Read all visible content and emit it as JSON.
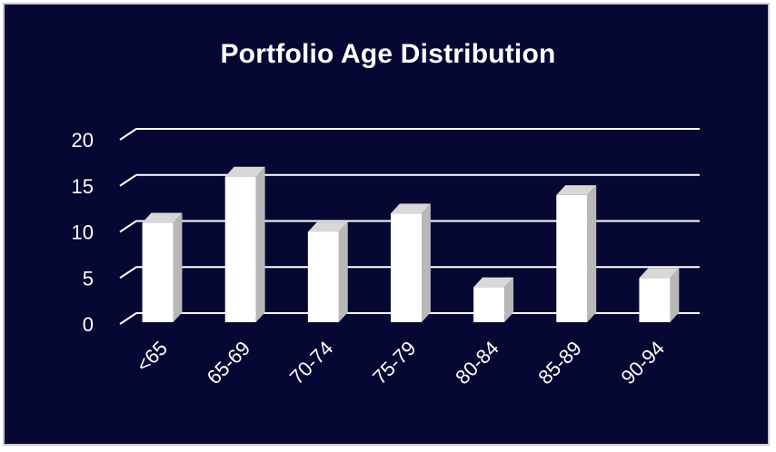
{
  "chart_data": {
    "type": "bar",
    "title": "Portfolio Age Distribution",
    "categories": [
      "<65",
      "65-69",
      "70-74",
      "75-79",
      "80-84",
      "85-89",
      "90-94"
    ],
    "values": [
      11,
      16,
      10,
      12,
      4,
      14,
      5
    ],
    "ylim": [
      0,
      20
    ],
    "yticks": [
      "0",
      "5",
      "10",
      "15",
      "20"
    ],
    "grid": true,
    "legend": false,
    "colors": {
      "background": "#060833",
      "bar_front": "#ffffff",
      "bar_side": "#b8b8b8",
      "bar_top": "#d8d8d8",
      "gridline": "#ffffff",
      "text": "#ffffff"
    }
  }
}
